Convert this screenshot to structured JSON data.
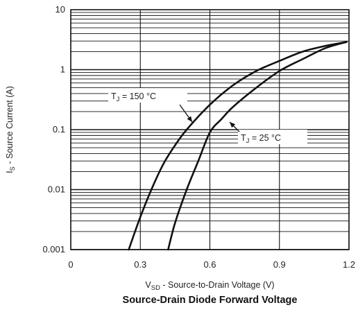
{
  "chart_data": {
    "type": "line",
    "title": "Source-Drain Diode Forward Voltage",
    "xlabel": {
      "main": "V",
      "sub": "SD",
      "rest": " - Source-to-Drain Voltage (V)"
    },
    "ylabel": {
      "main": "I",
      "sub": "S",
      "rest": " - Source Current (A)"
    },
    "x_scale": "linear",
    "y_scale": "log",
    "xlim": [
      0,
      1.2
    ],
    "ylim": [
      0.001,
      10
    ],
    "x_ticks": [
      0,
      0.3,
      0.6,
      0.9,
      1.2
    ],
    "x_tick_labels": [
      "0",
      "0.3",
      "0.6",
      "0.9",
      "1.2"
    ],
    "y_ticks": [
      0.001,
      0.01,
      0.1,
      1,
      10
    ],
    "y_tick_labels": [
      "0.001",
      "0.01",
      "0.1",
      "1",
      "10"
    ],
    "grid": true,
    "series": [
      {
        "name": "T_J = 150 °C",
        "label": {
          "main": "T",
          "sub": "J",
          "rest": " = 150 °C"
        },
        "x": [
          0.25,
          0.3,
          0.35,
          0.4,
          0.45,
          0.5,
          0.6,
          0.7,
          0.8,
          0.9,
          1.0,
          1.1,
          1.19
        ],
        "y": [
          0.001,
          0.0035,
          0.0105,
          0.027,
          0.055,
          0.1,
          0.26,
          0.55,
          0.95,
          1.4,
          2.0,
          2.5,
          2.9
        ]
      },
      {
        "name": "T_J = 25 °C",
        "label": {
          "main": "T",
          "sub": "J",
          "rest": " = 25 °C"
        },
        "x": [
          0.42,
          0.45,
          0.5,
          0.55,
          0.6,
          0.65,
          0.7,
          0.8,
          0.9,
          1.0,
          1.1,
          1.19
        ],
        "y": [
          0.001,
          0.0028,
          0.01,
          0.03,
          0.09,
          0.15,
          0.24,
          0.5,
          0.95,
          1.5,
          2.3,
          2.9
        ]
      }
    ]
  }
}
